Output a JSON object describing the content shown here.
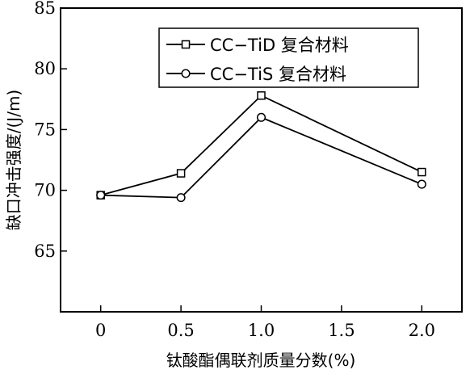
{
  "chart_data": {
    "type": "line",
    "xlabel": "钛酸酯偶联剂质量分数(%)",
    "ylabel": "缺口冲击强度/(J/m)",
    "x": [
      0,
      0.5,
      1.0,
      2.0
    ],
    "xlim": [
      -0.25,
      2.25
    ],
    "ylim": [
      60,
      85
    ],
    "xticks": [
      "0",
      "0.5",
      "1.0",
      "1.5",
      "2.0"
    ],
    "yticks": [
      "65",
      "70",
      "75",
      "80",
      "85"
    ],
    "legend_position": "top-right",
    "grid": false,
    "series": [
      {
        "name": "CC−TiD 复合材料",
        "marker": "square",
        "values": [
          69.6,
          71.4,
          77.8,
          71.5
        ]
      },
      {
        "name": "CC−TiS 复合材料",
        "marker": "circle",
        "values": [
          69.6,
          69.4,
          76.0,
          70.5
        ]
      }
    ]
  }
}
